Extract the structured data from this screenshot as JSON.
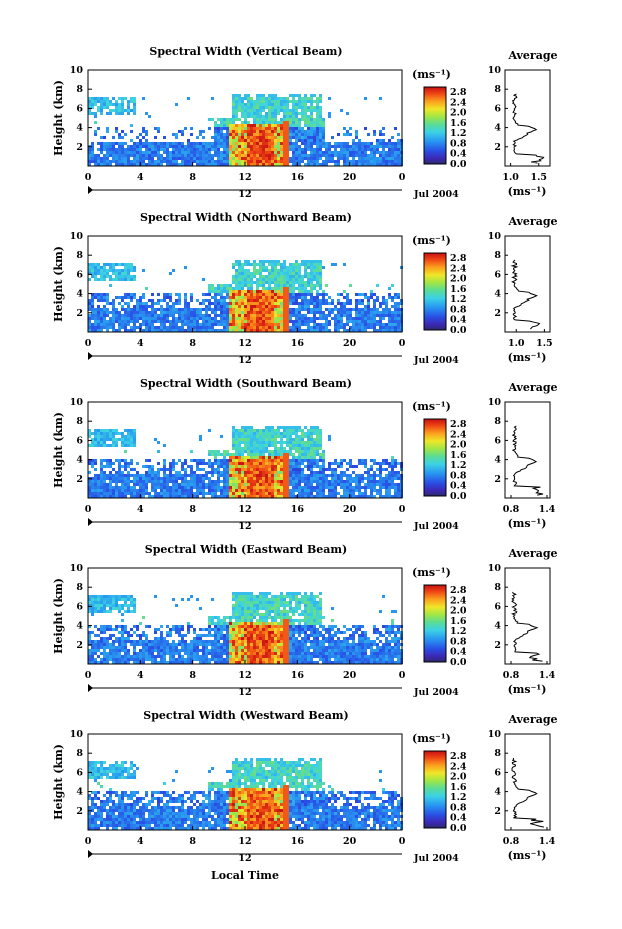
{
  "colors": {
    "axis": "#000000",
    "low": "#2b2a66",
    "high": "#cc1414"
  },
  "x_label": "Local Time",
  "date_label": "Jul 2004",
  "center_tick": "12",
  "units_label": "(ms⁻¹)",
  "avg_title": "Average",
  "avg_xlabel": "(ms⁻¹)",
  "colorbar_ticks": [
    "2.8",
    "2.4",
    "2.0",
    "1.6",
    "1.2",
    "0.8",
    "0.4",
    "0.0"
  ],
  "chart_data": [
    {
      "type": "heatmap",
      "title": "Spectral Width (Vertical Beam)",
      "ylabel": "Height (km)",
      "x_ticks": [
        "0",
        "4",
        "8",
        "12",
        "16",
        "20",
        "0"
      ],
      "y_ticks": [
        "2",
        "4",
        "6",
        "8",
        "10"
      ],
      "ylim": [
        0,
        10
      ],
      "xlim": [
        0,
        24
      ],
      "colorbar": {
        "label": "(ms⁻¹)",
        "range": [
          0,
          3.0
        ],
        "ticks": [
          0.0,
          0.4,
          0.8,
          1.2,
          1.6,
          2.0,
          2.4,
          2.8
        ]
      },
      "date": "Jul 2004",
      "average": {
        "title": "Average",
        "xlabel": "(ms⁻¹)",
        "x_ticks": [
          "1.0",
          "1.5"
        ],
        "y_ticks": [
          "2",
          "4",
          "6",
          "8",
          "10"
        ],
        "xlim": [
          0.9,
          1.7
        ]
      }
    },
    {
      "type": "heatmap",
      "title": "Spectral Width (Northward Beam)",
      "ylabel": "Height (km)",
      "x_ticks": [
        "0",
        "4",
        "8",
        "12",
        "16",
        "20",
        "0"
      ],
      "y_ticks": [
        "2",
        "4",
        "6",
        "8",
        "10"
      ],
      "ylim": [
        0,
        10
      ],
      "xlim": [
        0,
        24
      ],
      "colorbar": {
        "label": "(ms⁻¹)",
        "range": [
          0,
          3.0
        ],
        "ticks": [
          0.0,
          0.4,
          0.8,
          1.2,
          1.6,
          2.0,
          2.4,
          2.8
        ]
      },
      "date": "Jul 2004",
      "average": {
        "title": "Average",
        "xlabel": "(ms⁻¹)",
        "x_ticks": [
          "1.0",
          "1.5"
        ],
        "y_ticks": [
          "2",
          "4",
          "6",
          "8",
          "10"
        ],
        "xlim": [
          0.8,
          1.6
        ]
      }
    },
    {
      "type": "heatmap",
      "title": "Spectral Width (Southward Beam)",
      "ylabel": "Height (km)",
      "x_ticks": [
        "0",
        "4",
        "8",
        "12",
        "16",
        "20",
        "0"
      ],
      "y_ticks": [
        "2",
        "4",
        "6",
        "8",
        "10"
      ],
      "ylim": [
        0,
        10
      ],
      "xlim": [
        0,
        24
      ],
      "colorbar": {
        "label": "(ms⁻¹)",
        "range": [
          0,
          3.0
        ],
        "ticks": [
          0.0,
          0.4,
          0.8,
          1.2,
          1.6,
          2.0,
          2.4,
          2.8
        ]
      },
      "date": "Jul 2004",
      "average": {
        "title": "Average",
        "xlabel": "(ms⁻¹)",
        "x_ticks": [
          "0.8",
          "1.4"
        ],
        "y_ticks": [
          "2",
          "4",
          "6",
          "8",
          "10"
        ],
        "xlim": [
          0.7,
          1.45
        ]
      }
    },
    {
      "type": "heatmap",
      "title": "Spectral Width (Eastward Beam)",
      "ylabel": "Height (km)",
      "x_ticks": [
        "0",
        "4",
        "8",
        "12",
        "16",
        "20",
        "0"
      ],
      "y_ticks": [
        "2",
        "4",
        "6",
        "8",
        "10"
      ],
      "ylim": [
        0,
        10
      ],
      "xlim": [
        0,
        24
      ],
      "colorbar": {
        "label": "(ms⁻¹)",
        "range": [
          0,
          3.0
        ],
        "ticks": [
          0.0,
          0.4,
          0.8,
          1.2,
          1.6,
          2.0,
          2.4,
          2.8
        ]
      },
      "date": "Jul 2004",
      "average": {
        "title": "Average",
        "xlabel": "(ms⁻¹)",
        "x_ticks": [
          "0.8",
          "1.4"
        ],
        "y_ticks": [
          "2",
          "4",
          "6",
          "8",
          "10"
        ],
        "xlim": [
          0.7,
          1.45
        ]
      }
    },
    {
      "type": "heatmap",
      "title": "Spectral Width (Westward Beam)",
      "ylabel": "Height (km)",
      "x_ticks": [
        "0",
        "4",
        "8",
        "12",
        "16",
        "20",
        "0"
      ],
      "y_ticks": [
        "2",
        "4",
        "6",
        "8",
        "10"
      ],
      "ylim": [
        0,
        10
      ],
      "xlim": [
        0,
        24
      ],
      "colorbar": {
        "label": "(ms⁻¹)",
        "range": [
          0,
          3.0
        ],
        "ticks": [
          0.0,
          0.4,
          0.8,
          1.2,
          1.6,
          2.0,
          2.4,
          2.8
        ]
      },
      "date": "Jul 2004",
      "average": {
        "title": "Average",
        "xlabel": "(ms⁻¹)",
        "x_ticks": [
          "0.8",
          "1.4"
        ],
        "y_ticks": [
          "2",
          "4",
          "6",
          "8",
          "10"
        ],
        "xlim": [
          0.7,
          1.45
        ]
      }
    }
  ]
}
